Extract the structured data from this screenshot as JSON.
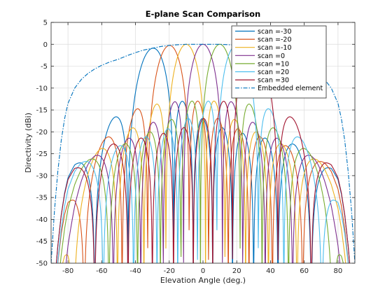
{
  "chart_data": {
    "type": "line",
    "title": "E-plane Scan Comparison",
    "xlabel": "Elevation Angle (deg.)",
    "ylabel": "Directivity (dBi)",
    "xlim": [
      -90,
      90
    ],
    "ylim": [
      -50,
      5
    ],
    "xticks": [
      -80,
      -60,
      -40,
      -20,
      0,
      20,
      40,
      60,
      80
    ],
    "yticks": [
      5,
      0,
      -5,
      -10,
      -15,
      -20,
      -25,
      -30,
      -35,
      -40,
      -45,
      -50
    ],
    "grid": true,
    "legend_position": "top-right",
    "num_elements": 10,
    "series": [
      {
        "name": "scan =-30",
        "scan": -30,
        "color": "#0072BD",
        "style": "solid"
      },
      {
        "name": "scan =-20",
        "scan": -20,
        "color": "#D95319",
        "style": "solid"
      },
      {
        "name": "scan =-10",
        "scan": -10,
        "color": "#EDB120",
        "style": "solid"
      },
      {
        "name": "scan =0",
        "scan": 0,
        "color": "#7E2F8E",
        "style": "solid"
      },
      {
        "name": "scan =10",
        "scan": 10,
        "color": "#77AC30",
        "style": "solid"
      },
      {
        "name": "scan =20",
        "scan": 20,
        "color": "#4DBEEE",
        "style": "solid"
      },
      {
        "name": "scan =30",
        "scan": 30,
        "color": "#A2142F",
        "style": "solid"
      },
      {
        "name": "Embedded element",
        "color": "#0072BD",
        "style": "dashdot",
        "points": [
          [
            -90,
            -50
          ],
          [
            -88,
            -38
          ],
          [
            -86,
            -29
          ],
          [
            -84,
            -22
          ],
          [
            -82,
            -17
          ],
          [
            -80,
            -13.5
          ],
          [
            -76,
            -10
          ],
          [
            -72,
            -8
          ],
          [
            -68,
            -6.6
          ],
          [
            -64,
            -5.6
          ],
          [
            -60,
            -4.8
          ],
          [
            -55,
            -4
          ],
          [
            -50,
            -3.4
          ],
          [
            -45,
            -2.6
          ],
          [
            -40,
            -1.9
          ],
          [
            -35,
            -1.3
          ],
          [
            -30,
            -0.9
          ],
          [
            -25,
            -0.5
          ],
          [
            -20,
            -0.25
          ],
          [
            -15,
            -0.1
          ],
          [
            -10,
            0
          ],
          [
            0,
            0
          ],
          [
            10,
            0
          ],
          [
            15,
            -0.1
          ],
          [
            20,
            -0.25
          ],
          [
            25,
            -0.5
          ],
          [
            30,
            -0.9
          ],
          [
            35,
            -1.3
          ],
          [
            40,
            -1.9
          ],
          [
            45,
            -2.6
          ],
          [
            50,
            -3.4
          ],
          [
            55,
            -4
          ],
          [
            60,
            -4.8
          ],
          [
            64,
            -5.6
          ],
          [
            68,
            -6.6
          ],
          [
            72,
            -8
          ],
          [
            76,
            -10
          ],
          [
            80,
            -13.5
          ],
          [
            82,
            -17
          ],
          [
            84,
            -22
          ],
          [
            86,
            -29
          ],
          [
            88,
            -38
          ],
          [
            90,
            -50
          ]
        ]
      }
    ]
  }
}
